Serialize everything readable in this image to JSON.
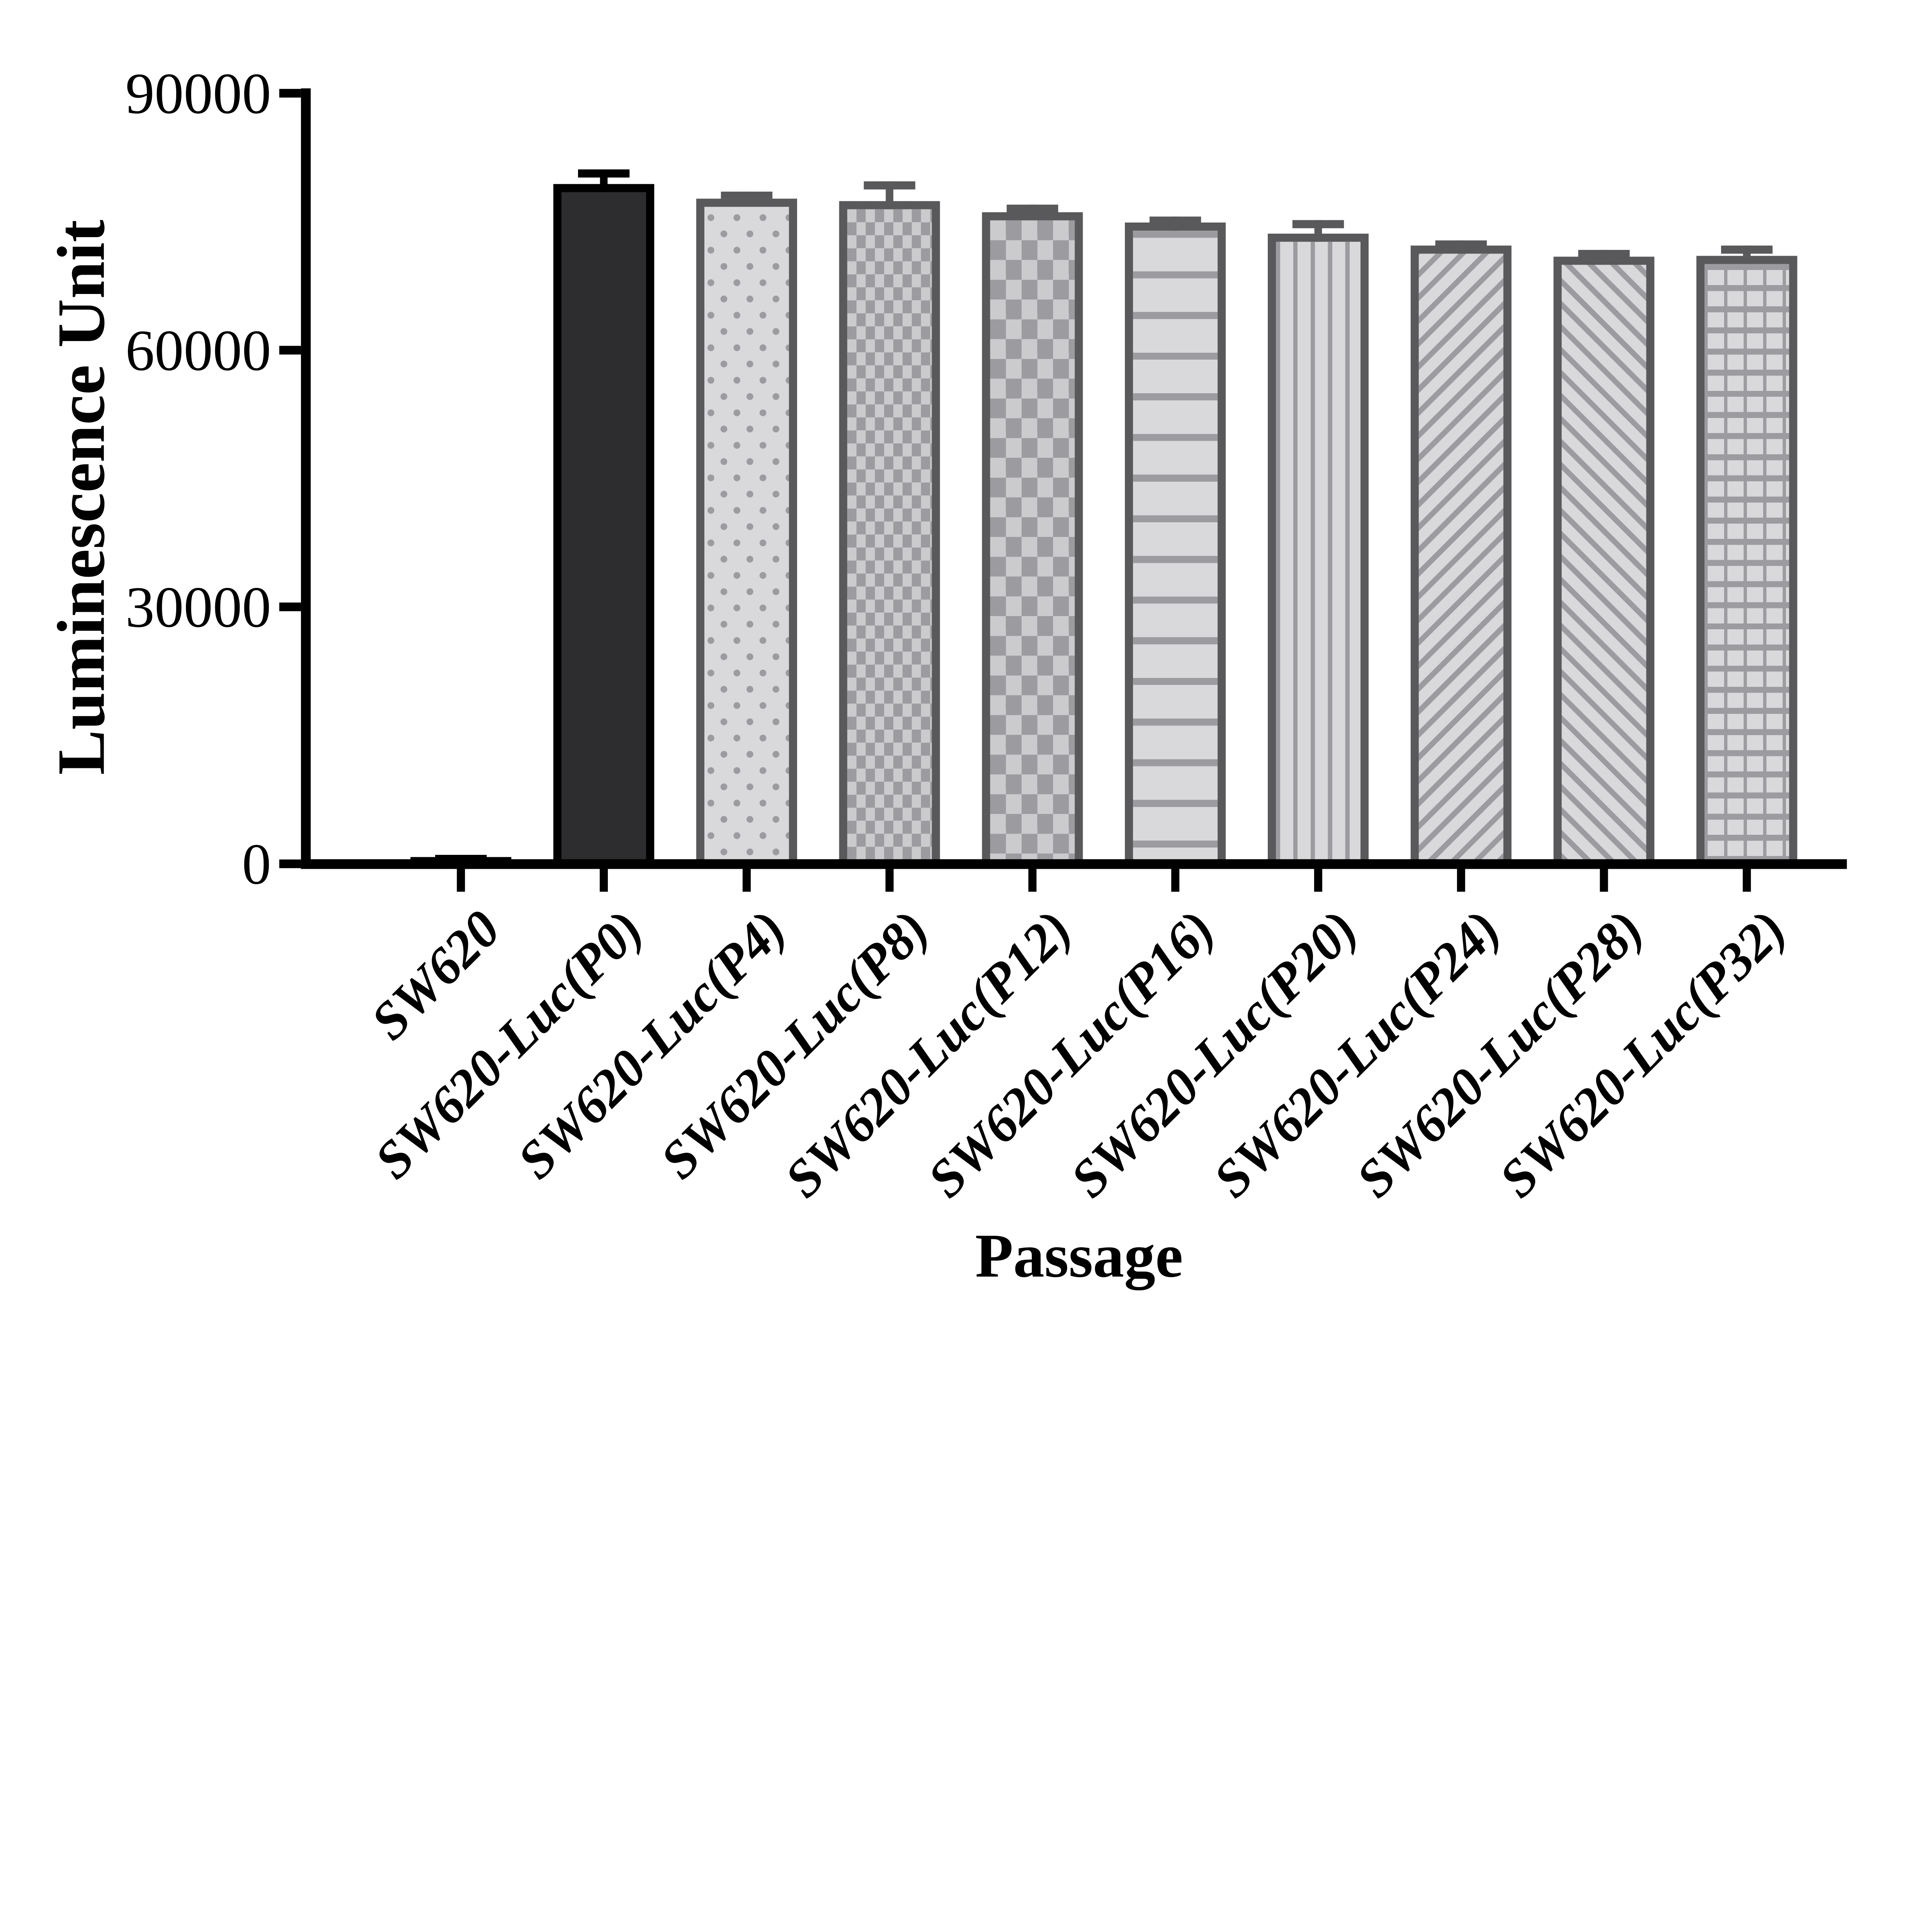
{
  "chart_data": {
    "type": "bar",
    "title": "",
    "xlabel": "Passage",
    "ylabel": "Luminescence Unit",
    "ylim": [
      0,
      90000
    ],
    "yticks": [
      0,
      30000,
      60000,
      90000
    ],
    "ytick_labels": [
      "0",
      "30000",
      "60000",
      "90000"
    ],
    "grid": false,
    "legend_position": "none",
    "categories": [
      "SW620",
      "SW620-Luc(P0)",
      "SW620-Luc(P4)",
      "SW620-Luc(P8)",
      "SW620-Luc(P12)",
      "SW620-Luc(P16)",
      "SW620-Luc(P20)",
      "SW620-Luc(P24)",
      "SW620-Luc(P28)",
      "SW620-Luc(P32)"
    ],
    "series": [
      {
        "label": "SW620",
        "value": 800,
        "error": 250,
        "pattern": "solid-black"
      },
      {
        "label": "SW620-Luc(P0)",
        "value": 79400,
        "error": 1700,
        "pattern": "solid-dark"
      },
      {
        "label": "SW620-Luc(P4)",
        "value": 77700,
        "error": 800,
        "pattern": "dots"
      },
      {
        "label": "SW620-Luc(P8)",
        "value": 77400,
        "error": 2300,
        "pattern": "checker-fine"
      },
      {
        "label": "SW620-Luc(P12)",
        "value": 76100,
        "error": 900,
        "pattern": "checker-coarse"
      },
      {
        "label": "SW620-Luc(P16)",
        "value": 74900,
        "error": 700,
        "pattern": "h-stripes"
      },
      {
        "label": "SW620-Luc(P20)",
        "value": 73600,
        "error": 1600,
        "pattern": "v-stripes"
      },
      {
        "label": "SW620-Luc(P24)",
        "value": 72200,
        "error": 600,
        "pattern": "diag-up"
      },
      {
        "label": "SW620-Luc(P28)",
        "value": 70900,
        "error": 800,
        "pattern": "diag-down"
      },
      {
        "label": "SW620-Luc(P32)",
        "value": 71000,
        "error": 1200,
        "pattern": "grid"
      }
    ]
  },
  "colors": {
    "ink": "#000000",
    "dark_bar_fill": "#2d2d2f",
    "gray_border": "#59595b",
    "light_fill": "#d9d9db",
    "pattern_gray": "#9c9ca0",
    "checker_light": "#cbcbcd",
    "background": "#ffffff"
  }
}
